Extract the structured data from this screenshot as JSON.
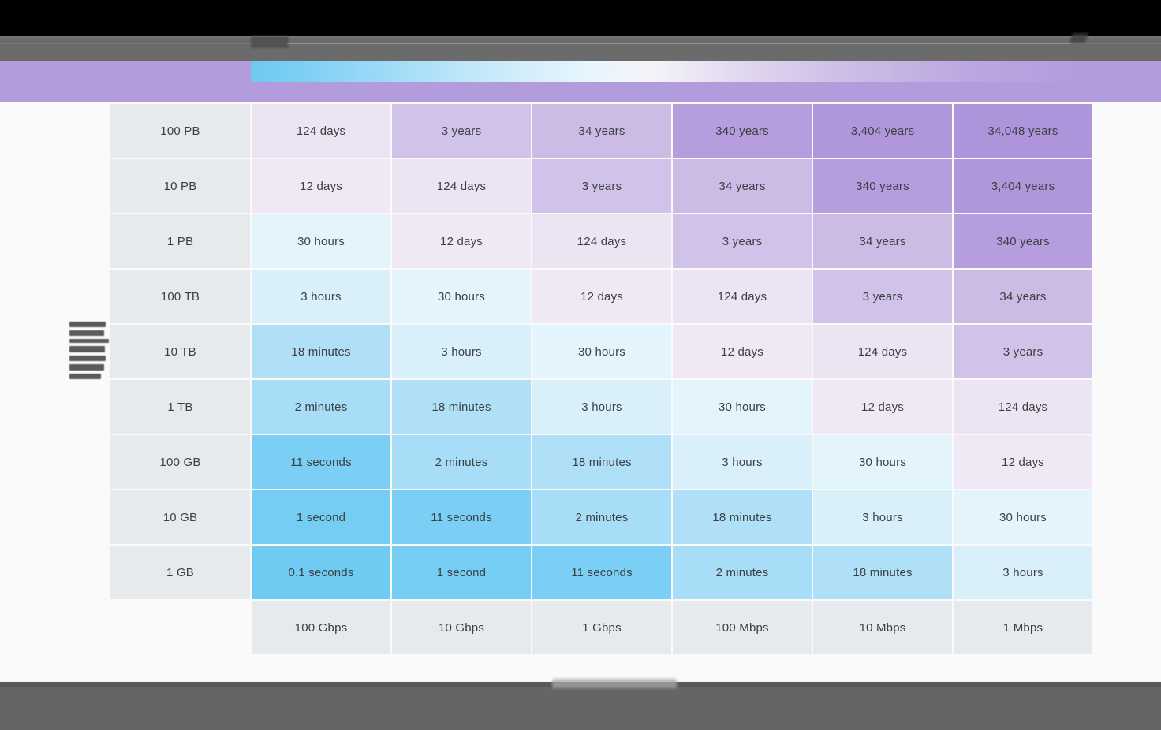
{
  "chrome": {
    "top_bar_color": "#000000",
    "toolbar_color": "#6B6B6B",
    "bottom_bar_color": "#656565",
    "page_background": "#FAFAFA",
    "redacted_toolbar_text": true,
    "redacted_left_axis_label": true,
    "redacted_bottom_axis_label": true
  },
  "legend": {
    "band_color": "#B39CDC",
    "gradient_stops": [
      "#6EC9F2",
      "#7DCFF4",
      "#9BD9F6",
      "#C6E9FA",
      "#E6F5FD",
      "#F5F4FA",
      "#E3D9F0",
      "#CDBCE6",
      "#BAA5E0",
      "#B39CDC"
    ]
  },
  "chart_data": {
    "type": "heatmap",
    "rows": [
      "100 PB",
      "10 PB",
      "1 PB",
      "100 TB",
      "10 TB",
      "1 TB",
      "100 GB",
      "10 GB",
      "1 GB"
    ],
    "columns": [
      "100 Gbps",
      "10 Gbps",
      "1 Gbps",
      "100 Mbps",
      "10 Mbps",
      "1 Mbps"
    ],
    "values": [
      [
        "124 days",
        "3 years",
        "34 years",
        "340 years",
        "3,404 years",
        "34,048 years"
      ],
      [
        "12 days",
        "124 days",
        "3 years",
        "34 years",
        "340 years",
        "3,404 years"
      ],
      [
        "30 hours",
        "12 days",
        "124 days",
        "3 years",
        "34 years",
        "340 years"
      ],
      [
        "3 hours",
        "30 hours",
        "12 days",
        "124 days",
        "3 years",
        "34 years"
      ],
      [
        "18 minutes",
        "3 hours",
        "30 hours",
        "12 days",
        "124 days",
        "3 years"
      ],
      [
        "2 minutes",
        "18 minutes",
        "3 hours",
        "30 hours",
        "12 days",
        "124 days"
      ],
      [
        "11 seconds",
        "2 minutes",
        "18 minutes",
        "3 hours",
        "30 hours",
        "12 days"
      ],
      [
        "1 second",
        "11 seconds",
        "2 minutes",
        "18 minutes",
        "3 hours",
        "30 hours"
      ],
      [
        "0.1 seconds",
        "1 second",
        "11 seconds",
        "2 minutes",
        "18 minutes",
        "3 hours"
      ]
    ],
    "label_cell_color": "#E7EAEC",
    "text_color": "#3C4043",
    "cell_colors": {
      "0.1 seconds": "#70CBF3",
      "1 second": "#75CDF4",
      "11 seconds": "#7BCFF4",
      "2 minutes": "#A7DDF7",
      "18 minutes": "#AFE0F8",
      "3 hours": "#D9F0FB",
      "30 hours": "#E4F4FC",
      "12 days": "#EFE8F5",
      "124 days": "#ECE4F3",
      "3 years": "#D0C2E8",
      "34 years": "#CBBBE5",
      "340 years": "#B59DDE",
      "3,404 years": "#B097DB",
      "34,048 years": "#AE94DA"
    },
    "legend_position": "top",
    "grid": false
  }
}
